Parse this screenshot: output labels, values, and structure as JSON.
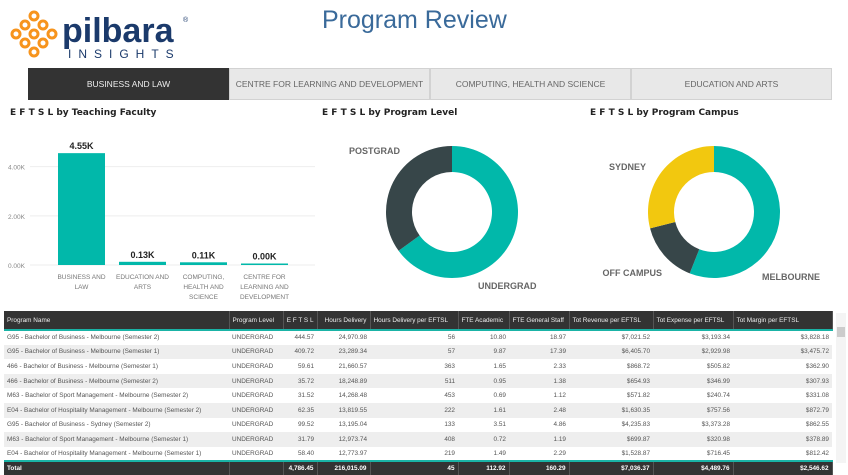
{
  "header": {
    "logo_text": "pilbara",
    "logo_sub": "INSIGHTS",
    "title": "Program Review"
  },
  "colors": {
    "teal": "#01b8aa",
    "dark": "#374649",
    "yellow": "#f2c80f",
    "tab_active": "#333333",
    "logo_orange": "#f7941d",
    "logo_blue": "#1b3a6b"
  },
  "tabs": [
    {
      "label": "BUSINESS AND LAW",
      "active": true
    },
    {
      "label": "CENTRE FOR LEARNING AND DEVELOPMENT"
    },
    {
      "label": "COMPUTING, HEALTH AND SCIENCE"
    },
    {
      "label": "EDUCATION AND ARTS"
    }
  ],
  "chart_data": [
    {
      "type": "bar",
      "title": "E F T S L by Teaching Faculty",
      "categories": [
        "BUSINESS AND LAW",
        "EDUCATION AND ARTS",
        "COMPUTING, HEALTH AND SCIENCE",
        "CENTRE FOR LEARNING AND DEVELOPMENT"
      ],
      "values": [
        4550,
        130,
        110,
        0
      ],
      "data_labels": [
        "4.55K",
        "0.13K",
        "0.11K",
        "0.00K"
      ],
      "yticks": [
        "0.00K",
        "2.00K",
        "4.00K"
      ],
      "ylim": [
        0,
        4800
      ],
      "grid": true
    },
    {
      "type": "pie",
      "variant": "donut",
      "title": "E F T S L by Program Level",
      "labels": [
        "UNDERGRAD",
        "POSTGRAD"
      ],
      "values": [
        65,
        35
      ],
      "colors": [
        "#01b8aa",
        "#374649"
      ]
    },
    {
      "type": "pie",
      "variant": "donut",
      "title": "E F T S L by Program Campus",
      "labels": [
        "MELBOURNE",
        "OFF CAMPUS",
        "SYDNEY"
      ],
      "values": [
        56,
        15,
        29
      ],
      "colors": [
        "#01b8aa",
        "#374649",
        "#f2c80f"
      ]
    }
  ],
  "table": {
    "columns": [
      "Program Name",
      "Program Level",
      "E F T S L",
      "Hours Delivery",
      "Hours Delivery per EFTSL",
      "FTE Academic",
      "FTE General Staff",
      "Tot Revenue per EFTSL",
      "Tot Expense per EFTSL",
      "Tot Margin per EFTSL"
    ],
    "sort_column": "Hours Delivery",
    "rows": [
      [
        "G95 - Bachelor of Business - Melbourne (Semester 2)",
        "UNDERGRAD",
        "444.57",
        "24,970.98",
        "56",
        "10.80",
        "18.97",
        "$7,021.52",
        "$3,193.34",
        "$3,828.18"
      ],
      [
        "G95 - Bachelor of Business - Melbourne (Semester 1)",
        "UNDERGRAD",
        "409.72",
        "23,289.34",
        "57",
        "9.87",
        "17.39",
        "$6,405.70",
        "$2,929.98",
        "$3,475.72"
      ],
      [
        "466 - Bachelor of Business - Melbourne (Semester 1)",
        "UNDERGRAD",
        "59.61",
        "21,660.57",
        "363",
        "1.65",
        "2.33",
        "$868.72",
        "$505.82",
        "$362.90"
      ],
      [
        "466 - Bachelor of Business - Melbourne (Semester 2)",
        "UNDERGRAD",
        "35.72",
        "18,248.89",
        "511",
        "0.95",
        "1.38",
        "$654.93",
        "$346.99",
        "$307.93"
      ],
      [
        "M63 - Bachelor of Sport Management - Melbourne (Semester 2)",
        "UNDERGRAD",
        "31.52",
        "14,268.48",
        "453",
        "0.69",
        "1.12",
        "$571.82",
        "$240.74",
        "$331.08"
      ],
      [
        "E04 - Bachelor of Hospitality Management - Melbourne (Semester 2)",
        "UNDERGRAD",
        "62.35",
        "13,819.55",
        "222",
        "1.61",
        "2.48",
        "$1,630.35",
        "$757.56",
        "$872.79"
      ],
      [
        "G95 - Bachelor of Business - Sydney (Semester 2)",
        "UNDERGRAD",
        "99.52",
        "13,195.04",
        "133",
        "3.51",
        "4.86",
        "$4,235.83",
        "$3,373.28",
        "$862.55"
      ],
      [
        "M63 - Bachelor of Sport Management - Melbourne (Semester 1)",
        "UNDERGRAD",
        "31.79",
        "12,973.74",
        "408",
        "0.72",
        "1.19",
        "$699.87",
        "$320.98",
        "$378.89"
      ],
      [
        "E04 - Bachelor of Hospitality Management - Melbourne (Semester 1)",
        "UNDERGRAD",
        "58.40",
        "12,773.97",
        "219",
        "1.49",
        "2.29",
        "$1,528.87",
        "$716.45",
        "$812.42"
      ]
    ],
    "total": [
      "Total",
      "",
      "4,786.45",
      "216,015.09",
      "45",
      "112.92",
      "160.29",
      "$7,036.37",
      "$4,489.76",
      "$2,546.62"
    ]
  }
}
